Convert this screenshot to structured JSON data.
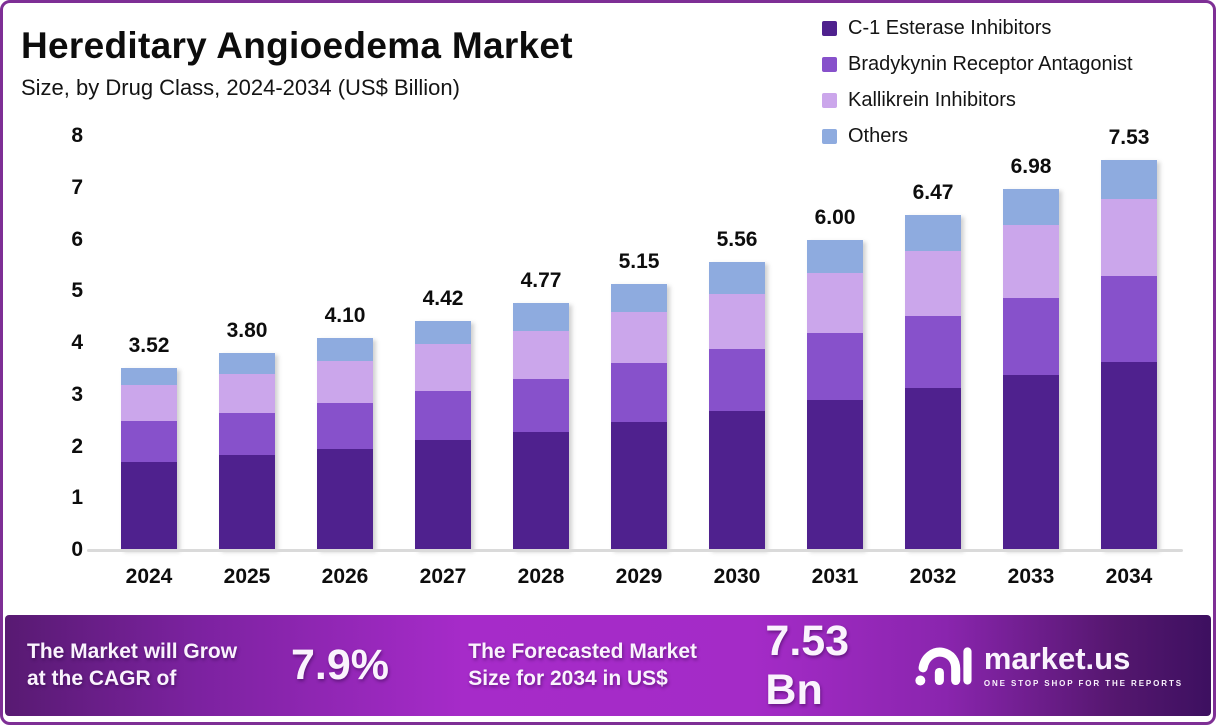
{
  "title": "Hereditary Angioedema Market",
  "subtitle": "Size, by Drug Class, 2024-2034 (US$ Billion)",
  "legend": [
    {
      "label": "C-1 Esterase Inhibitors",
      "color": "#4f218e"
    },
    {
      "label": "Bradykynin Receptor Antagonist",
      "color": "#8751cb"
    },
    {
      "label": "Kallikrein Inhibitors",
      "color": "#cba6eb"
    },
    {
      "label": "Others",
      "color": "#8eabdf"
    }
  ],
  "chart_data": {
    "type": "bar",
    "stacked": true,
    "title": "Hereditary Angioedema Market Size, by Drug Class, 2024-2034 (US$ Billion)",
    "categories": [
      "2024",
      "2025",
      "2026",
      "2027",
      "2028",
      "2029",
      "2030",
      "2031",
      "2032",
      "2033",
      "2034"
    ],
    "totals": [
      3.52,
      3.8,
      4.1,
      4.42,
      4.77,
      5.15,
      5.56,
      6.0,
      6.47,
      6.98,
      7.53
    ],
    "series": [
      {
        "name": "C-1 Esterase Inhibitors",
        "color": "#4f218e",
        "values": [
          1.71,
          1.84,
          1.96,
          2.12,
          2.29,
          2.47,
          2.68,
          2.89,
          3.13,
          3.38,
          3.63
        ]
      },
      {
        "name": "Bradykynin Receptor Antagonist",
        "color": "#8751cb",
        "values": [
          0.78,
          0.8,
          0.89,
          0.95,
          1.01,
          1.14,
          1.2,
          1.3,
          1.39,
          1.49,
          1.67
        ]
      },
      {
        "name": "Kallikrein Inhibitors",
        "color": "#cba6eb",
        "values": [
          0.69,
          0.76,
          0.8,
          0.91,
          0.93,
          0.99,
          1.07,
          1.17,
          1.25,
          1.42,
          1.48
        ]
      },
      {
        "name": "Others",
        "color": "#8eabdf",
        "values": [
          0.34,
          0.4,
          0.45,
          0.44,
          0.54,
          0.55,
          0.61,
          0.64,
          0.7,
          0.69,
          0.75
        ]
      }
    ],
    "xlabel": "",
    "ylabel": "",
    "ylim": [
      0,
      8
    ],
    "yticks": [
      0,
      1,
      2,
      3,
      4,
      5,
      6,
      7,
      8
    ],
    "grid": false,
    "legend_position": "top-right"
  },
  "footer": {
    "cagr_label": "The Market will Grow\nat the CAGR of",
    "cagr_value": "7.9%",
    "forecast_label": "The Forecasted Market\nSize for 2034 in US$",
    "forecast_value": "7.53 Bn",
    "brand": {
      "name": "market.us",
      "tagline": "ONE STOP SHOP FOR THE REPORTS"
    }
  }
}
